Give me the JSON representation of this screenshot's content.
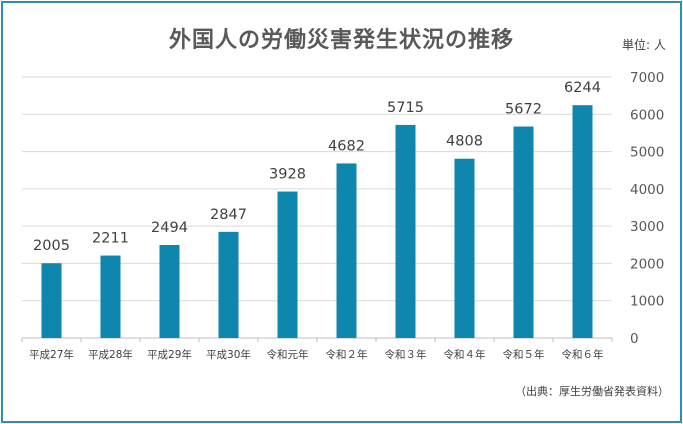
{
  "chart_data": {
    "type": "bar",
    "title": "外国人の労働災害発生状況の推移",
    "unit_label": "単位: 人",
    "source": "（出典：厚生労働省発表資料）",
    "categories": [
      "平成27年",
      "平成28年",
      "平成29年",
      "平成30年",
      "令和元年",
      "令和２年",
      "令和３年",
      "令和４年",
      "令和５年",
      "令和６年"
    ],
    "values": [
      2005,
      2211,
      2494,
      2847,
      3928,
      4682,
      5715,
      4808,
      5672,
      6244
    ],
    "ylim": [
      0,
      7000
    ],
    "yticks": [
      0,
      1000,
      2000,
      3000,
      4000,
      5000,
      6000,
      7000
    ],
    "y_axis_side": "right",
    "grid": true,
    "legend": "none",
    "bar_color": "#0e86ad",
    "grid_color": "#d9d9d9",
    "border_color": "#2e8fb0"
  }
}
